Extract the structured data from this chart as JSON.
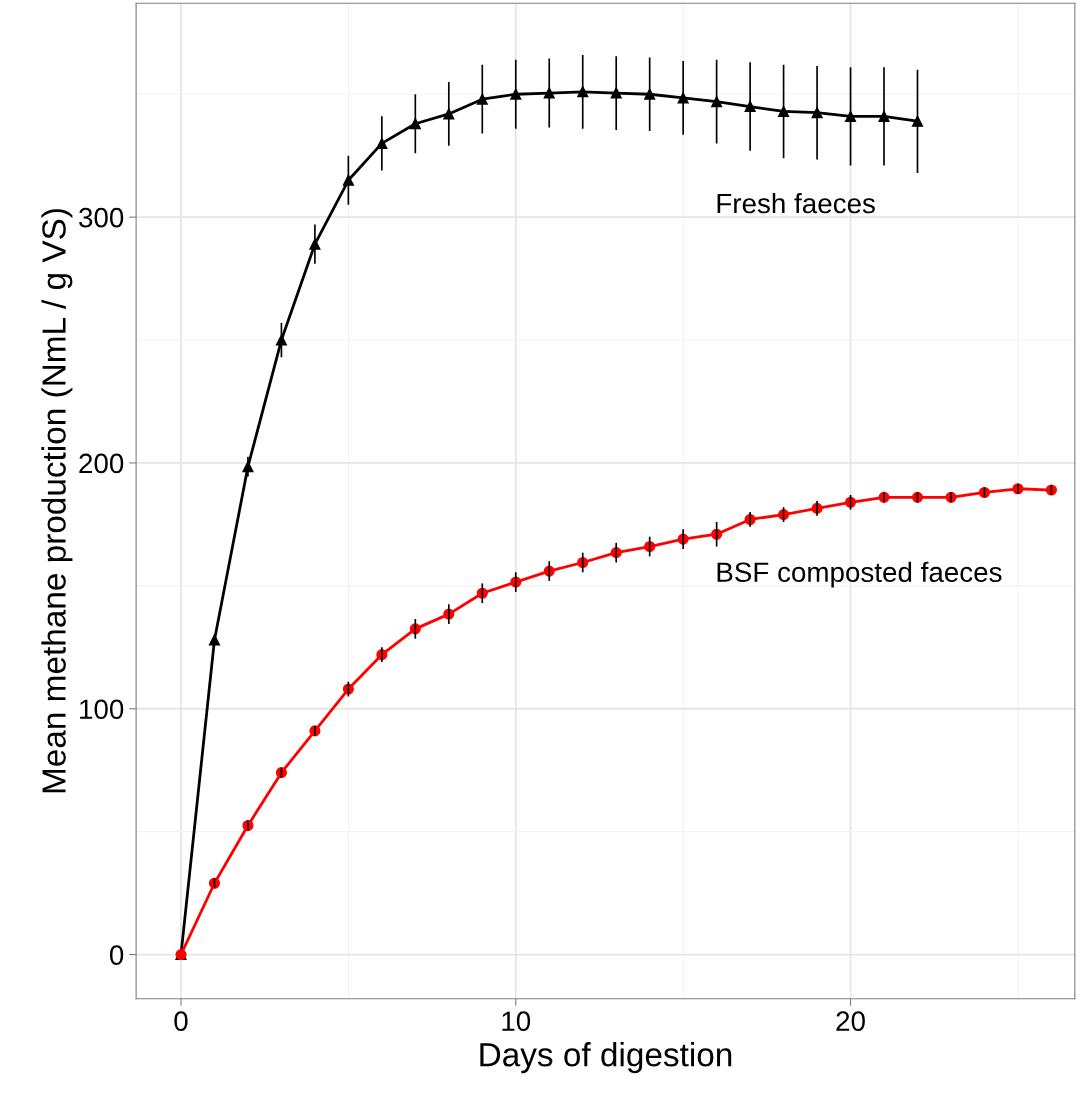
{
  "chart_data": {
    "type": "line",
    "xlabel": "Days of digestion",
    "ylabel": "Mean methane production (NmL / g VS)",
    "x": [
      0,
      1,
      2,
      3,
      4,
      5,
      6,
      7,
      8,
      9,
      10,
      11,
      12,
      13,
      14,
      15,
      16,
      17,
      18,
      19,
      20,
      21,
      22,
      23,
      24,
      25,
      26
    ],
    "series": [
      {
        "name": "Fresh faeces",
        "color": "#000000",
        "marker": "triangle",
        "x": [
          0,
          1,
          2,
          3,
          4,
          5,
          6,
          7,
          8,
          9,
          10,
          11,
          12,
          13,
          14,
          15,
          16,
          17,
          18,
          19,
          20,
          21,
          22
        ],
        "values": [
          0,
          128,
          198.5,
          250,
          289,
          315,
          330,
          338,
          342,
          348,
          350,
          350.5,
          351,
          350.5,
          350,
          348.5,
          347,
          345,
          343,
          342.5,
          341,
          341,
          339
        ],
        "errors": [
          null,
          2,
          4,
          7,
          8,
          10,
          11,
          12,
          13,
          14,
          14,
          14,
          15,
          15,
          15,
          15,
          17,
          18,
          19,
          19,
          20,
          20,
          21
        ]
      },
      {
        "name": "BSF composted faeces",
        "color": "#ff0000",
        "marker": "circle",
        "values": [
          0,
          29,
          52.5,
          74,
          91,
          108,
          122,
          132.5,
          138.5,
          147,
          151.5,
          156,
          159.5,
          163.5,
          166,
          169,
          171,
          177,
          179,
          181.5,
          184,
          186,
          186,
          186,
          188,
          189.5,
          189
        ],
        "errors": [
          null,
          2,
          2,
          2,
          2,
          3,
          3,
          4,
          4,
          4,
          4,
          4,
          4,
          4,
          4,
          4,
          5,
          3,
          3,
          3,
          3,
          2,
          2,
          2,
          2,
          2,
          2
        ]
      }
    ],
    "xlim": [
      -1.34,
      26.7
    ],
    "ylim": [
      -18,
      387
    ],
    "xticks": [
      0,
      10,
      20
    ],
    "yticks": [
      0,
      100,
      200,
      300
    ],
    "grid": true,
    "line_style": "solid"
  }
}
